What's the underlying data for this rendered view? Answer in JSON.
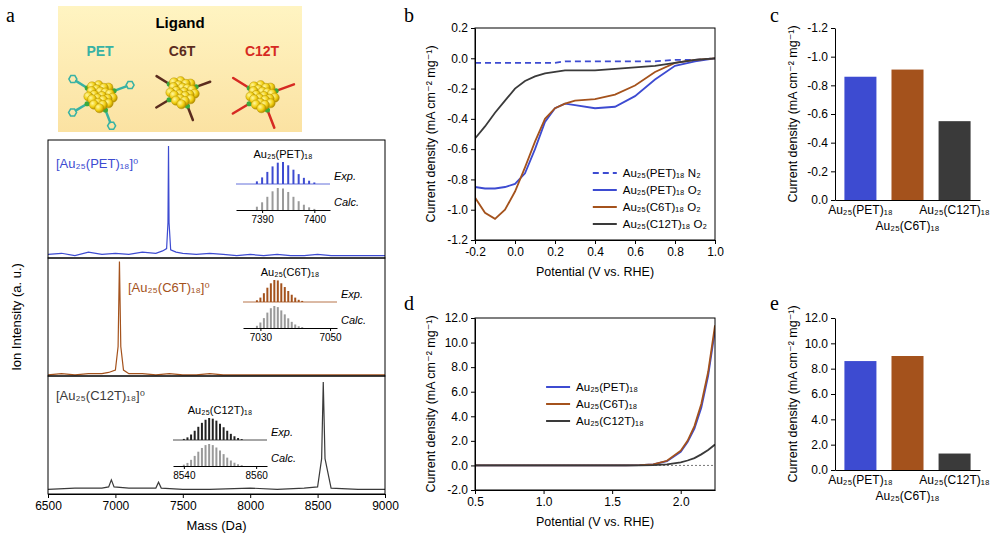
{
  "panel_labels": [
    "a",
    "b",
    "c",
    "d",
    "e"
  ],
  "illustration": {
    "title": "Ligand",
    "labels": [
      {
        "text": "PET",
        "color": "#38b2a4"
      },
      {
        "text": "C6T",
        "color": "#5b2c1e"
      },
      {
        "text": "C12T",
        "color": "#d62a22"
      }
    ]
  },
  "chart_data": [
    {
      "type": "line",
      "x": [
        6500,
        6600,
        6700,
        6800,
        6900,
        7000,
        7100,
        7200,
        7300,
        7350,
        7380,
        7390,
        7394,
        7398,
        7410,
        7450,
        7500,
        7600,
        7700,
        7800,
        7900,
        8000,
        8100,
        8200,
        8300,
        8400,
        8500,
        8600,
        8700,
        8800,
        8900,
        9000
      ],
      "xlim": [
        6500,
        9000
      ],
      "ylim": [
        0,
        1
      ],
      "tick_labels": false,
      "series": [
        {
          "name": "[Au₂₅(PET)₁₈]⁰",
          "color": "#3d4bd1",
          "values": [
            0.03,
            0.04,
            0.02,
            0.05,
            0.03,
            0.04,
            0.03,
            0.05,
            0.04,
            0.06,
            0.08,
            0.3,
            0.95,
            0.3,
            0.07,
            0.05,
            0.04,
            0.03,
            0.04,
            0.03,
            0.02,
            0.03,
            0.02,
            0.03,
            0.02,
            0.02,
            0.03,
            0.02,
            0.02,
            0.02,
            0.02,
            0.02
          ]
        }
      ]
    },
    {
      "type": "line",
      "y_label": "Ion Intensity (a. u.)",
      "x": [
        6500,
        6600,
        6700,
        6800,
        6900,
        6950,
        7000,
        7020,
        7030,
        7040,
        7060,
        7100,
        7200,
        7300,
        7400,
        7500,
        7600,
        7700,
        7800,
        7900,
        8000,
        8200,
        8400,
        8600,
        8800,
        9000
      ],
      "xlim": [
        6500,
        9000
      ],
      "ylim": [
        0,
        1
      ],
      "tick_labels": false,
      "series": [
        {
          "name": "[Au₂₅(C6T)₁₈]⁰",
          "color": "#a4521c",
          "values": [
            0.01,
            0.02,
            0.01,
            0.02,
            0.02,
            0.03,
            0.05,
            0.25,
            0.97,
            0.25,
            0.05,
            0.02,
            0.02,
            0.01,
            0.02,
            0.01,
            0.01,
            0.02,
            0.01,
            0.01,
            0.01,
            0.01,
            0.01,
            0.01,
            0.01,
            0.01
          ]
        }
      ]
    },
    {
      "type": "line",
      "x_label": "Mass (Da)",
      "x": [
        6500,
        6700,
        6900,
        6950,
        6970,
        6990,
        7100,
        7300,
        7320,
        7340,
        7500,
        7700,
        8000,
        8200,
        8400,
        8500,
        8530,
        8542,
        8555,
        8600,
        8800,
        9000
      ],
      "xlim": [
        6500,
        9000
      ],
      "ylim": [
        0,
        1
      ],
      "xticks": [
        6500,
        7000,
        7500,
        8000,
        8500,
        9000
      ],
      "tick_labels": "x",
      "series": [
        {
          "name": "[Au₂₅(C12T)₁₈]⁰",
          "color": "#3a3a3a",
          "values": [
            0.04,
            0.05,
            0.05,
            0.06,
            0.12,
            0.06,
            0.05,
            0.05,
            0.1,
            0.05,
            0.04,
            0.04,
            0.05,
            0.04,
            0.05,
            0.06,
            0.3,
            0.95,
            0.3,
            0.05,
            0.04,
            0.04
          ]
        }
      ]
    },
    {
      "type": "stem",
      "title": "Au₂₅(PET)₁₈",
      "x": [
        7389,
        7390,
        7391,
        7392,
        7393,
        7394,
        7395,
        7396,
        7397,
        7398,
        7399,
        7400
      ],
      "xlim": [
        7385,
        7403
      ],
      "ylim": [
        0,
        1
      ],
      "xticks": [
        7390,
        7400
      ],
      "tick_labels": "x",
      "series": [
        {
          "name": "Exp.",
          "color": "#3d4bd1",
          "values": [
            0.12,
            0.3,
            0.55,
            0.8,
            0.97,
            1.0,
            0.85,
            0.65,
            0.45,
            0.28,
            0.15,
            0.07
          ]
        },
        {
          "name": "Calc.",
          "color": "#9a9a9a",
          "values": [
            0.15,
            0.35,
            0.6,
            0.85,
            1.0,
            0.98,
            0.82,
            0.6,
            0.4,
            0.24,
            0.12,
            0.05
          ]
        }
      ]
    },
    {
      "type": "stem",
      "title": "Au₂₅(C6T)₁₈",
      "x": [
        7029,
        7030,
        7031,
        7032,
        7033,
        7034,
        7035,
        7036,
        7037,
        7038,
        7039,
        7040,
        7041,
        7042
      ],
      "xlim": [
        7025,
        7052
      ],
      "ylim": [
        0,
        1
      ],
      "xticks": [
        7030,
        7050
      ],
      "tick_labels": "x",
      "series": [
        {
          "name": "Exp.",
          "color": "#a4521c",
          "values": [
            0.08,
            0.2,
            0.4,
            0.65,
            0.85,
            1.0,
            0.98,
            0.85,
            0.68,
            0.5,
            0.33,
            0.2,
            0.1,
            0.05
          ]
        },
        {
          "name": "Calc.",
          "color": "#9a9a9a",
          "values": [
            0.1,
            0.25,
            0.45,
            0.7,
            0.9,
            1.0,
            0.95,
            0.8,
            0.62,
            0.44,
            0.28,
            0.16,
            0.08,
            0.04
          ]
        }
      ]
    },
    {
      "type": "stem",
      "title": "Au₂₅(C12T)₁₈",
      "x": [
        8540,
        8541,
        8542,
        8543,
        8544,
        8545,
        8546,
        8547,
        8548,
        8549,
        8550,
        8551,
        8552,
        8553,
        8554,
        8555,
        8556
      ],
      "xlim": [
        8537,
        8563
      ],
      "ylim": [
        0,
        1
      ],
      "xticks": [
        8540,
        8560
      ],
      "tick_labels": "x",
      "series": [
        {
          "name": "Exp.",
          "color": "#222222",
          "values": [
            0.05,
            0.12,
            0.25,
            0.42,
            0.6,
            0.78,
            0.92,
            1.0,
            0.97,
            0.88,
            0.74,
            0.58,
            0.42,
            0.28,
            0.17,
            0.09,
            0.04
          ]
        },
        {
          "name": "Calc.",
          "color": "#9a9a9a",
          "values": [
            0.06,
            0.14,
            0.28,
            0.46,
            0.65,
            0.82,
            0.95,
            1.0,
            0.95,
            0.84,
            0.7,
            0.54,
            0.38,
            0.25,
            0.15,
            0.08,
            0.04
          ]
        }
      ]
    },
    {
      "type": "line",
      "x_label": "Potential (V vs. RHE)",
      "y_label": "Current density (mA cm⁻² mg⁻¹)",
      "x": [
        -0.2,
        -0.15,
        -0.1,
        -0.05,
        0,
        0.05,
        0.1,
        0.15,
        0.2,
        0.25,
        0.3,
        0.4,
        0.5,
        0.6,
        0.7,
        0.8,
        0.9,
        1.0
      ],
      "xlim": [
        -0.2,
        1.0
      ],
      "ylim": [
        -1.2,
        0.2
      ],
      "xticks": [
        -0.2,
        {
          "value": 0,
          "label": "0.0"
        },
        0.2,
        0.4,
        0.6,
        0.8,
        {
          "value": 1,
          "label": "1.0"
        }
      ],
      "yticks": [
        -1.2,
        {
          "value": -1,
          "label": "-1.0"
        },
        -0.8,
        -0.6,
        -0.4,
        -0.2,
        {
          "value": 0,
          "label": "0.0"
        },
        0.2
      ],
      "legend": "lower right",
      "series": [
        {
          "name": "Au₂₅(PET)₁₈ N₂",
          "color": "#3d4bd1",
          "line_style": "dashed",
          "values": [
            -0.03,
            -0.03,
            -0.03,
            -0.03,
            -0.03,
            -0.03,
            -0.03,
            -0.03,
            -0.03,
            -0.02,
            -0.02,
            -0.02,
            -0.02,
            -0.02,
            -0.02,
            -0.01,
            -0.01,
            0
          ]
        },
        {
          "name": "Au₂₅(PET)₁₈ O₂",
          "color": "#3d4bd1",
          "line_style": "solid",
          "values": [
            -0.85,
            -0.86,
            -0.86,
            -0.85,
            -0.83,
            -0.76,
            -0.6,
            -0.42,
            -0.33,
            -0.3,
            -0.31,
            -0.33,
            -0.32,
            -0.25,
            -0.14,
            -0.05,
            -0.02,
            0
          ]
        },
        {
          "name": "Au₂₅(C6T)₁₈ O₂",
          "color": "#a4521c",
          "line_style": "solid",
          "values": [
            -0.92,
            -1.02,
            -1.06,
            -1.0,
            -0.88,
            -0.72,
            -0.55,
            -0.4,
            -0.33,
            -0.3,
            -0.28,
            -0.27,
            -0.24,
            -0.18,
            -0.09,
            -0.03,
            -0.01,
            0
          ]
        },
        {
          "name": "Au₂₅(C12T)₁₈ O₂",
          "color": "#3a3a3a",
          "line_style": "solid",
          "values": [
            -0.53,
            -0.45,
            -0.36,
            -0.28,
            -0.2,
            -0.15,
            -0.12,
            -0.1,
            -0.09,
            -0.08,
            -0.08,
            -0.08,
            -0.07,
            -0.06,
            -0.05,
            -0.03,
            -0.01,
            0
          ]
        }
      ]
    },
    {
      "type": "bar",
      "y_label": "Current density (mA cm⁻² mg⁻¹)",
      "categories": [
        "Au₂₅(PET)₁₈",
        "Au₂₅(C6T)₁₈",
        "Au₂₅(C12T)₁₈"
      ],
      "values": [
        -0.86,
        -0.91,
        -0.55
      ],
      "colors": [
        "#3d4bd1",
        "#a4521c",
        "#3a3a3a"
      ],
      "ylim": [
        0,
        -1.2
      ],
      "yticks": [
        {
          "value": 0,
          "label": "0.0"
        },
        -0.2,
        -0.4,
        -0.6,
        -0.8,
        {
          "value": -1,
          "label": "-1.0"
        },
        -1.2
      ]
    },
    {
      "type": "line",
      "x_label": "Potential (V vs. RHE)",
      "y_label": "Current density (mA cm⁻² mg⁻¹)",
      "x": [
        0.5,
        1.0,
        1.5,
        1.6,
        1.7,
        1.8,
        1.9,
        2.0,
        2.05,
        2.1,
        2.15,
        2.2,
        2.25
      ],
      "xlim": [
        0.5,
        2.25
      ],
      "ylim": [
        -2,
        12
      ],
      "xticks": [
        0.5,
        {
          "value": 1,
          "label": "1.0"
        },
        1.5,
        {
          "value": 2,
          "label": "2.0"
        }
      ],
      "yticks": [
        {
          "value": -2,
          "label": "-2.0"
        },
        {
          "value": 0,
          "label": "0.0"
        },
        {
          "value": 2,
          "label": "2.0"
        },
        {
          "value": 4,
          "label": "4.0"
        },
        {
          "value": 6,
          "label": "6.0"
        },
        {
          "value": 8,
          "label": "8.0"
        },
        {
          "value": 10,
          "label": "10.0"
        },
        {
          "value": 12,
          "label": "12.0"
        }
      ],
      "reference_line": 0,
      "legend": "center",
      "series": [
        {
          "name": "Au₂₅(PET)₁₈",
          "color": "#3d4bd1",
          "values": [
            0,
            0,
            0,
            0,
            0.02,
            0.08,
            0.35,
            1.1,
            1.9,
            3.0,
            4.7,
            7.3,
            11.0
          ]
        },
        {
          "name": "Au₂₅(C6T)₁₈",
          "color": "#a4521c",
          "values": [
            0,
            0,
            0,
            0,
            0.02,
            0.09,
            0.38,
            1.2,
            2.0,
            3.2,
            5.0,
            7.6,
            11.4
          ]
        },
        {
          "name": "Au₂₅(C12T)₁₈",
          "color": "#3a3a3a",
          "values": [
            0,
            0,
            0,
            0,
            0,
            0.02,
            0.08,
            0.25,
            0.4,
            0.6,
            0.9,
            1.25,
            1.7
          ]
        }
      ]
    },
    {
      "type": "bar",
      "y_label": "Current density (mA cm⁻² mg⁻¹)",
      "categories": [
        "Au₂₅(PET)₁₈",
        "Au₂₅(C6T)₁₈",
        "Au₂₅(C12T)₁₈"
      ],
      "values": [
        8.6,
        9.0,
        1.3
      ],
      "colors": [
        "#3d4bd1",
        "#a4521c",
        "#3a3a3a"
      ],
      "ylim": [
        0,
        12
      ],
      "yticks": [
        {
          "value": 0,
          "label": "0.0"
        },
        {
          "value": 2,
          "label": "2.0"
        },
        {
          "value": 4,
          "label": "4.0"
        },
        {
          "value": 6,
          "label": "6.0"
        },
        {
          "value": 8,
          "label": "8.0"
        },
        {
          "value": 10,
          "label": "10.0"
        },
        {
          "value": 12,
          "label": "12.0"
        }
      ]
    }
  ]
}
